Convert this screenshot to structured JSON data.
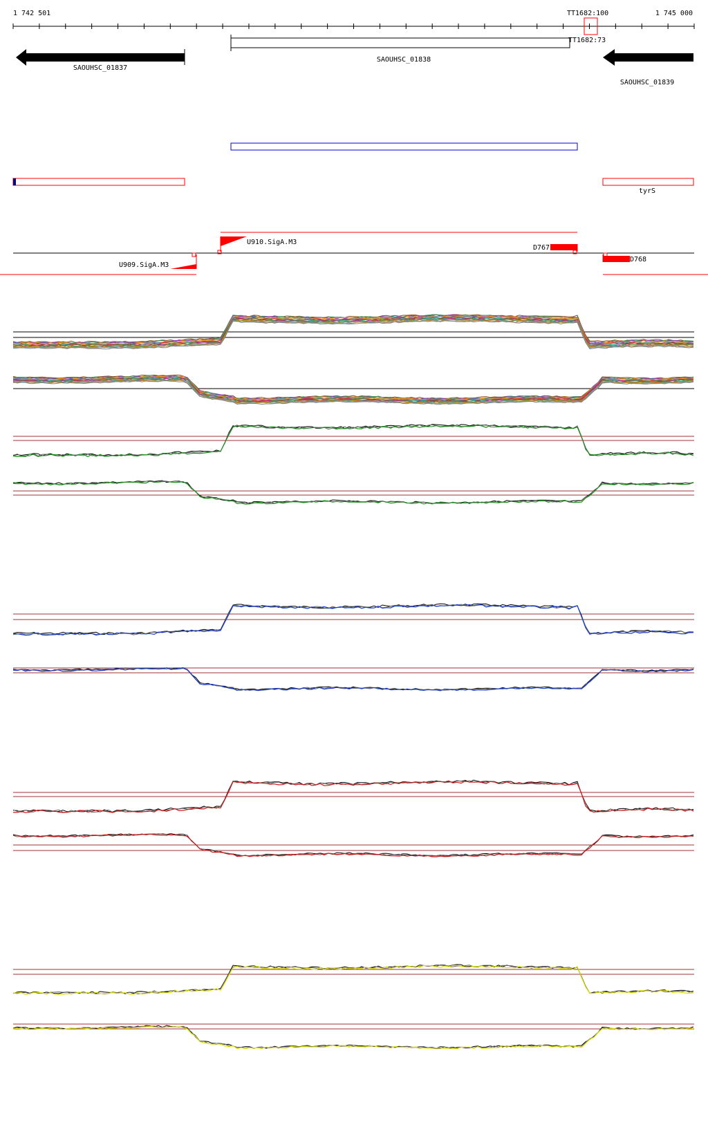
{
  "ruler": {
    "start_label": "1 742 501",
    "end_label": "1 745 000",
    "marker_label": "TT1682:100"
  },
  "genes": [
    {
      "id": "gene-1837",
      "label": "SAOUHSC_01837",
      "strand": "-"
    },
    {
      "id": "gene-1838",
      "label": "SAOUHSC_01838",
      "strand": "+"
    },
    {
      "id": "gene-1839",
      "label": "SAOUHSC_01839",
      "strand": "-"
    }
  ],
  "overlap_label": "TT1682:73",
  "annotations": {
    "tyrS": "tyrS"
  },
  "promoters": {
    "u909": "U909.SigA.M3",
    "u910": "U910.SigA.M3"
  },
  "terminators": {
    "d767": "D767",
    "d768": "D768"
  },
  "colors": {
    "gene": "#000000",
    "track_red": "#ff0000",
    "track_blue": "#0000cc",
    "green": "#1f8f1f",
    "blue": "#1a3fcc",
    "red": "#cc1a1a",
    "yellow": "#e0e000",
    "threshold": "#a03030",
    "multi": [
      "#8b4513",
      "#2e8b57",
      "#9932cc",
      "#ff8c00",
      "#4682b4",
      "#daa520",
      "#dc143c",
      "#556b2f",
      "#20b2aa",
      "#c71585",
      "#6b8e23",
      "#b8860b",
      "#5f9ea0",
      "#cd853f",
      "#708090"
    ]
  },
  "profile_panels": [
    {
      "name": "multi-plus",
      "kind": "multi",
      "shape": "plus"
    },
    {
      "name": "multi-minus",
      "kind": "multi",
      "shape": "minus"
    },
    {
      "name": "green-plus",
      "kind": "pair",
      "shape": "plus",
      "color": "green"
    },
    {
      "name": "green-minus",
      "kind": "pair",
      "shape": "minus",
      "color": "green"
    },
    {
      "name": "blue-plus",
      "kind": "pair",
      "shape": "plus",
      "color": "blue"
    },
    {
      "name": "blue-minus",
      "kind": "pair",
      "shape": "minus",
      "color": "blue"
    },
    {
      "name": "red-plus",
      "kind": "pair",
      "shape": "plus",
      "color": "red"
    },
    {
      "name": "red-minus",
      "kind": "pair",
      "shape": "minus",
      "color": "red"
    },
    {
      "name": "yellow-plus",
      "kind": "pair",
      "shape": "plus",
      "color": "yellow"
    },
    {
      "name": "yellow-minus",
      "kind": "pair",
      "shape": "minus",
      "color": "yellow"
    }
  ]
}
